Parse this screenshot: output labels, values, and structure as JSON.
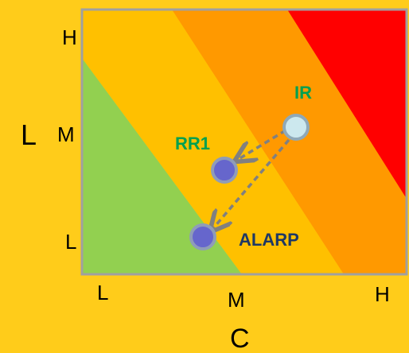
{
  "colors": {
    "background": "#FFCC1A",
    "zone_low": "#92D050",
    "zone_medium": "#FFC000",
    "zone_high": "#FF9900",
    "zone_very_high": "#FF0000",
    "frame": "#A0A0A0",
    "point_fill": "#6666CC",
    "point_ir_fill": "#CCE8EE",
    "arrow": "#808080",
    "label_green": "#00A050",
    "label_dark": "#1F3864"
  },
  "axes": {
    "y_title": "L",
    "x_title": "C",
    "y_ticks": [
      "H",
      "M",
      "L"
    ],
    "x_ticks": [
      "L",
      "M",
      "H"
    ]
  },
  "points": {
    "ir": {
      "label": "IR"
    },
    "rr1": {
      "label": "RR1"
    },
    "alarp": {
      "label": "ALARP"
    }
  }
}
